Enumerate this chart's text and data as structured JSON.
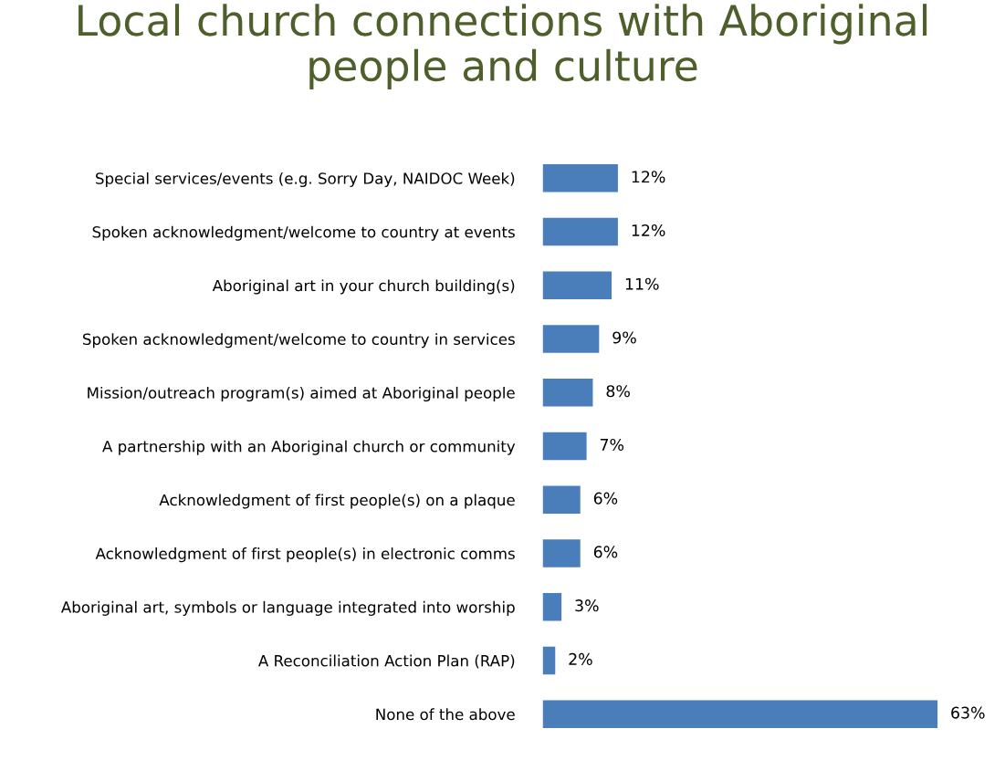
{
  "chart_data": {
    "type": "bar",
    "orientation": "horizontal",
    "title": "Local church connections with Aboriginal\npeople and culture",
    "categories": [
      "Special services/events (e.g. Sorry Day, NAIDOC Week)",
      "Spoken acknowledgment/welcome to country at events",
      "Aboriginal art in your church building(s)",
      "Spoken acknowledgment/welcome to country in services",
      "Mission/outreach program(s) aimed at Aboriginal people",
      "A partnership with an Aboriginal church or community",
      "Acknowledgment of first people(s) on a plaque",
      "Acknowledgment of first people(s) in electronic comms",
      "Aboriginal art, symbols or language integrated into worship",
      "A Reconciliation Action Plan (RAP)",
      "None of the above"
    ],
    "values": [
      12,
      12,
      11,
      9,
      8,
      7,
      6,
      6,
      3,
      2,
      63
    ],
    "value_labels": [
      "12%",
      "12%",
      "11%",
      "9%",
      "8%",
      "7%",
      "6%",
      "6%",
      "3%",
      "2%",
      "63%"
    ],
    "color": "#4a7ebb",
    "tick_labels": "y"
  }
}
